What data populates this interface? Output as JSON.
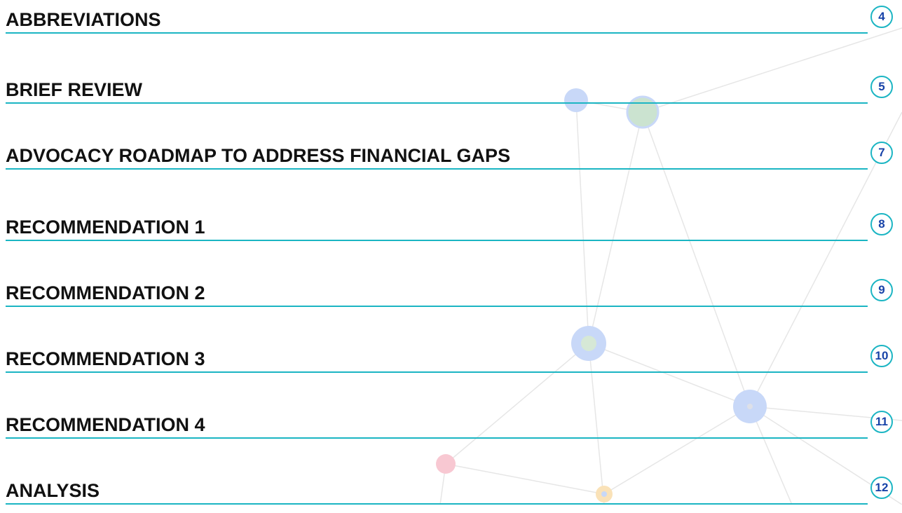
{
  "entries": [
    {
      "title": "ABBREVIATIONS",
      "page": "4"
    },
    {
      "title": "BRIEF REVIEW",
      "page": "5"
    },
    {
      "title": "ADVOCACY ROADMAP TO ADDRESS FINANCIAL GAPS",
      "page": "7"
    },
    {
      "title": "RECOMMENDATION 1",
      "page": "8"
    },
    {
      "title": "RECOMMENDATION 2",
      "page": "9"
    },
    {
      "title": "RECOMMENDATION 3",
      "page": "10"
    },
    {
      "title": "RECOMMENDATION 4",
      "page": "11"
    },
    {
      "title": "ANALYSIS",
      "page": "12"
    }
  ]
}
